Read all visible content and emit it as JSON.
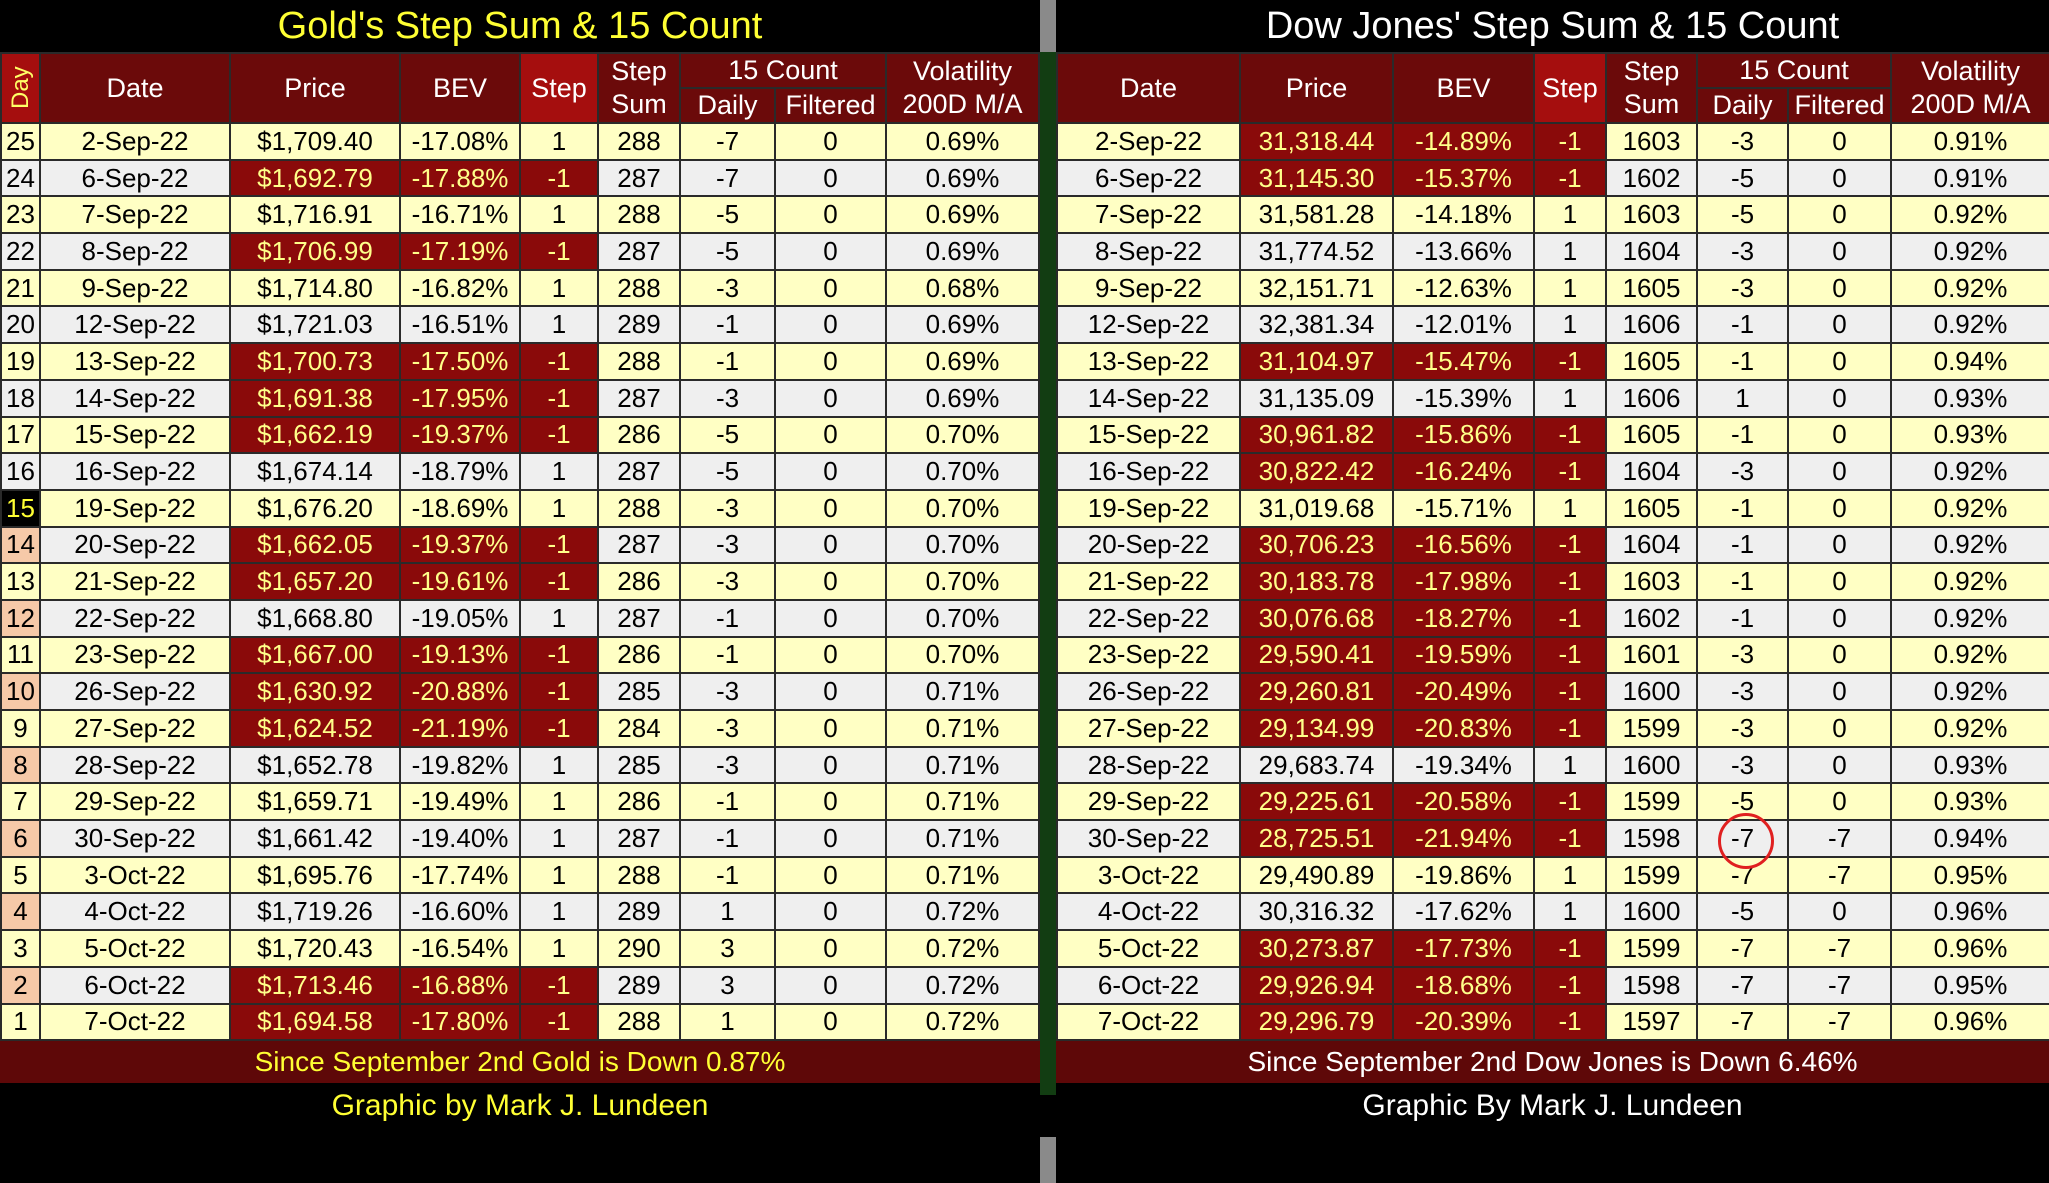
{
  "gold": {
    "title": "Gold's Step Sum & 15 Count",
    "header": {
      "day": "Day",
      "date": "Date",
      "price": "Price",
      "bev": "BEV",
      "step": "Step",
      "step_sum": [
        "Step",
        "Sum"
      ],
      "count": "15 Count",
      "daily": "Daily",
      "filtered": "Filtered",
      "volatility": [
        "Volatility",
        "200D M/A"
      ]
    },
    "rows": [
      [
        "25",
        "2-Sep-22",
        "$1,709.40",
        "-17.08%",
        "1",
        "288",
        "-7",
        "0",
        "0.69%"
      ],
      [
        "24",
        "6-Sep-22",
        "$1,692.79",
        "-17.88%",
        "-1",
        "287",
        "-7",
        "0",
        "0.69%"
      ],
      [
        "23",
        "7-Sep-22",
        "$1,716.91",
        "-16.71%",
        "1",
        "288",
        "-5",
        "0",
        "0.69%"
      ],
      [
        "22",
        "8-Sep-22",
        "$1,706.99",
        "-17.19%",
        "-1",
        "287",
        "-5",
        "0",
        "0.69%"
      ],
      [
        "21",
        "9-Sep-22",
        "$1,714.80",
        "-16.82%",
        "1",
        "288",
        "-3",
        "0",
        "0.68%"
      ],
      [
        "20",
        "12-Sep-22",
        "$1,721.03",
        "-16.51%",
        "1",
        "289",
        "-1",
        "0",
        "0.69%"
      ],
      [
        "19",
        "13-Sep-22",
        "$1,700.73",
        "-17.50%",
        "-1",
        "288",
        "-1",
        "0",
        "0.69%"
      ],
      [
        "18",
        "14-Sep-22",
        "$1,691.38",
        "-17.95%",
        "-1",
        "287",
        "-3",
        "0",
        "0.69%"
      ],
      [
        "17",
        "15-Sep-22",
        "$1,662.19",
        "-19.37%",
        "-1",
        "286",
        "-5",
        "0",
        "0.70%"
      ],
      [
        "16",
        "16-Sep-22",
        "$1,674.14",
        "-18.79%",
        "1",
        "287",
        "-5",
        "0",
        "0.70%"
      ],
      [
        "15",
        "19-Sep-22",
        "$1,676.20",
        "-18.69%",
        "1",
        "288",
        "-3",
        "0",
        "0.70%"
      ],
      [
        "14",
        "20-Sep-22",
        "$1,662.05",
        "-19.37%",
        "-1",
        "287",
        "-3",
        "0",
        "0.70%"
      ],
      [
        "13",
        "21-Sep-22",
        "$1,657.20",
        "-19.61%",
        "-1",
        "286",
        "-3",
        "0",
        "0.70%"
      ],
      [
        "12",
        "22-Sep-22",
        "$1,668.80",
        "-19.05%",
        "1",
        "287",
        "-1",
        "0",
        "0.70%"
      ],
      [
        "11",
        "23-Sep-22",
        "$1,667.00",
        "-19.13%",
        "-1",
        "286",
        "-1",
        "0",
        "0.70%"
      ],
      [
        "10",
        "26-Sep-22",
        "$1,630.92",
        "-20.88%",
        "-1",
        "285",
        "-3",
        "0",
        "0.71%"
      ],
      [
        "9",
        "27-Sep-22",
        "$1,624.52",
        "-21.19%",
        "-1",
        "284",
        "-3",
        "0",
        "0.71%"
      ],
      [
        "8",
        "28-Sep-22",
        "$1,652.78",
        "-19.82%",
        "1",
        "285",
        "-3",
        "0",
        "0.71%"
      ],
      [
        "7",
        "29-Sep-22",
        "$1,659.71",
        "-19.49%",
        "1",
        "286",
        "-1",
        "0",
        "0.71%"
      ],
      [
        "6",
        "30-Sep-22",
        "$1,661.42",
        "-19.40%",
        "1",
        "287",
        "-1",
        "0",
        "0.71%"
      ],
      [
        "5",
        "3-Oct-22",
        "$1,695.76",
        "-17.74%",
        "1",
        "288",
        "-1",
        "0",
        "0.71%"
      ],
      [
        "4",
        "4-Oct-22",
        "$1,719.26",
        "-16.60%",
        "1",
        "289",
        "1",
        "0",
        "0.72%"
      ],
      [
        "3",
        "5-Oct-22",
        "$1,720.43",
        "-16.54%",
        "1",
        "290",
        "3",
        "0",
        "0.72%"
      ],
      [
        "2",
        "6-Oct-22",
        "$1,713.46",
        "-16.88%",
        "-1",
        "289",
        "3",
        "0",
        "0.72%"
      ],
      [
        "1",
        "7-Oct-22",
        "$1,694.58",
        "-17.80%",
        "-1",
        "288",
        "1",
        "0",
        "0.72%"
      ]
    ],
    "summary": "Since September 2nd Gold is  Down 0.87%",
    "credit": "Graphic by Mark J. Lundeen"
  },
  "dow": {
    "title": "Dow Jones' Step Sum & 15 Count",
    "header": {
      "date": "Date",
      "price": "Price",
      "bev": "BEV",
      "step": "Step",
      "step_sum": [
        "Step",
        "Sum"
      ],
      "count": "15 Count",
      "daily": "Daily",
      "filtered": "Filtered",
      "volatility": [
        "Volatility",
        "200D M/A"
      ]
    },
    "rows": [
      [
        "2-Sep-22",
        "31,318.44",
        "-14.89%",
        "-1",
        "1603",
        "-3",
        "0",
        "0.91%"
      ],
      [
        "6-Sep-22",
        "31,145.30",
        "-15.37%",
        "-1",
        "1602",
        "-5",
        "0",
        "0.91%"
      ],
      [
        "7-Sep-22",
        "31,581.28",
        "-14.18%",
        "1",
        "1603",
        "-5",
        "0",
        "0.92%"
      ],
      [
        "8-Sep-22",
        "31,774.52",
        "-13.66%",
        "1",
        "1604",
        "-3",
        "0",
        "0.92%"
      ],
      [
        "9-Sep-22",
        "32,151.71",
        "-12.63%",
        "1",
        "1605",
        "-3",
        "0",
        "0.92%"
      ],
      [
        "12-Sep-22",
        "32,381.34",
        "-12.01%",
        "1",
        "1606",
        "-1",
        "0",
        "0.92%"
      ],
      [
        "13-Sep-22",
        "31,104.97",
        "-15.47%",
        "-1",
        "1605",
        "-1",
        "0",
        "0.94%"
      ],
      [
        "14-Sep-22",
        "31,135.09",
        "-15.39%",
        "1",
        "1606",
        "1",
        "0",
        "0.93%"
      ],
      [
        "15-Sep-22",
        "30,961.82",
        "-15.86%",
        "-1",
        "1605",
        "-1",
        "0",
        "0.93%"
      ],
      [
        "16-Sep-22",
        "30,822.42",
        "-16.24%",
        "-1",
        "1604",
        "-3",
        "0",
        "0.92%"
      ],
      [
        "19-Sep-22",
        "31,019.68",
        "-15.71%",
        "1",
        "1605",
        "-1",
        "0",
        "0.92%"
      ],
      [
        "20-Sep-22",
        "30,706.23",
        "-16.56%",
        "-1",
        "1604",
        "-1",
        "0",
        "0.92%"
      ],
      [
        "21-Sep-22",
        "30,183.78",
        "-17.98%",
        "-1",
        "1603",
        "-1",
        "0",
        "0.92%"
      ],
      [
        "22-Sep-22",
        "30,076.68",
        "-18.27%",
        "-1",
        "1602",
        "-1",
        "0",
        "0.92%"
      ],
      [
        "23-Sep-22",
        "29,590.41",
        "-19.59%",
        "-1",
        "1601",
        "-3",
        "0",
        "0.92%"
      ],
      [
        "26-Sep-22",
        "29,260.81",
        "-20.49%",
        "-1",
        "1600",
        "-3",
        "0",
        "0.92%"
      ],
      [
        "27-Sep-22",
        "29,134.99",
        "-20.83%",
        "-1",
        "1599",
        "-3",
        "0",
        "0.92%"
      ],
      [
        "28-Sep-22",
        "29,683.74",
        "-19.34%",
        "1",
        "1600",
        "-3",
        "0",
        "0.93%"
      ],
      [
        "29-Sep-22",
        "29,225.61",
        "-20.58%",
        "-1",
        "1599",
        "-5",
        "0",
        "0.93%"
      ],
      [
        "30-Sep-22",
        "28,725.51",
        "-21.94%",
        "-1",
        "1598",
        "-7",
        "-7",
        "0.94%"
      ],
      [
        "3-Oct-22",
        "29,490.89",
        "-19.86%",
        "1",
        "1599",
        "-7",
        "-7",
        "0.95%"
      ],
      [
        "4-Oct-22",
        "30,316.32",
        "-17.62%",
        "1",
        "1600",
        "-5",
        "0",
        "0.96%"
      ],
      [
        "5-Oct-22",
        "30,273.87",
        "-17.73%",
        "-1",
        "1599",
        "-7",
        "-7",
        "0.96%"
      ],
      [
        "6-Oct-22",
        "29,926.94",
        "-18.68%",
        "-1",
        "1598",
        "-7",
        "-7",
        "0.95%"
      ],
      [
        "7-Oct-22",
        "29,296.79",
        "-20.39%",
        "-1",
        "1597",
        "-7",
        "-7",
        "0.96%"
      ]
    ],
    "summary": "Since September 2nd Dow Jones is Down 6.46%",
    "credit": "Graphic By Mark J. Lundeen"
  }
}
